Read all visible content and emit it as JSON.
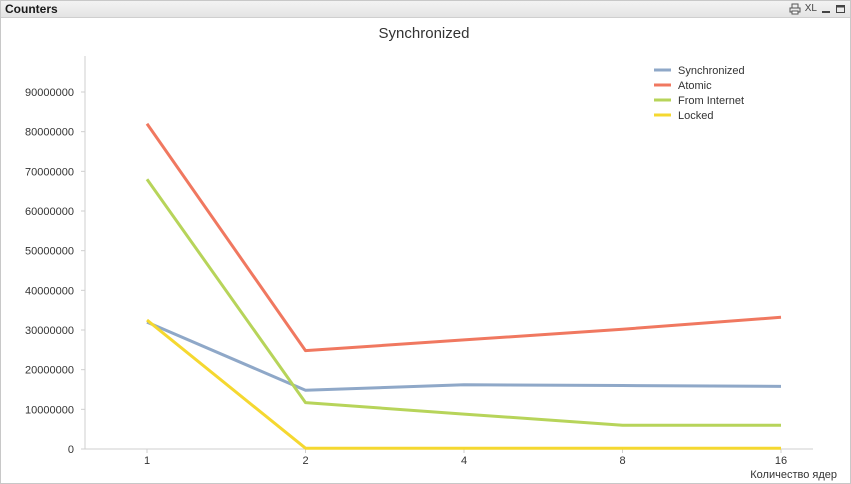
{
  "window": {
    "title": "Counters",
    "controls": {
      "xl_label": "XL"
    }
  },
  "chart_data": {
    "type": "line",
    "title": "Synchronized",
    "xlabel": "Количество ядер",
    "ylabel": "",
    "categories": [
      "1",
      "2",
      "4",
      "8",
      "16"
    ],
    "ylim": [
      0,
      90000000
    ],
    "yticks": [
      0,
      10000000,
      20000000,
      30000000,
      40000000,
      50000000,
      60000000,
      70000000,
      80000000,
      90000000
    ],
    "grid": false,
    "legend_position": "top-right",
    "series": [
      {
        "name": "Synchronized",
        "color": "#8fa8c8",
        "values": [
          32000000,
          14800000,
          16200000,
          16000000,
          15800000
        ]
      },
      {
        "name": "Atomic",
        "color": "#f07860",
        "values": [
          82000000,
          24800000,
          27500000,
          30200000,
          33200000
        ]
      },
      {
        "name": "From Internet",
        "color": "#b7d45a",
        "values": [
          68000000,
          11700000,
          8800000,
          6000000,
          6000000
        ]
      },
      {
        "name": "Locked",
        "color": "#f5d830",
        "values": [
          32500000,
          200000,
          200000,
          200000,
          200000
        ]
      }
    ]
  }
}
